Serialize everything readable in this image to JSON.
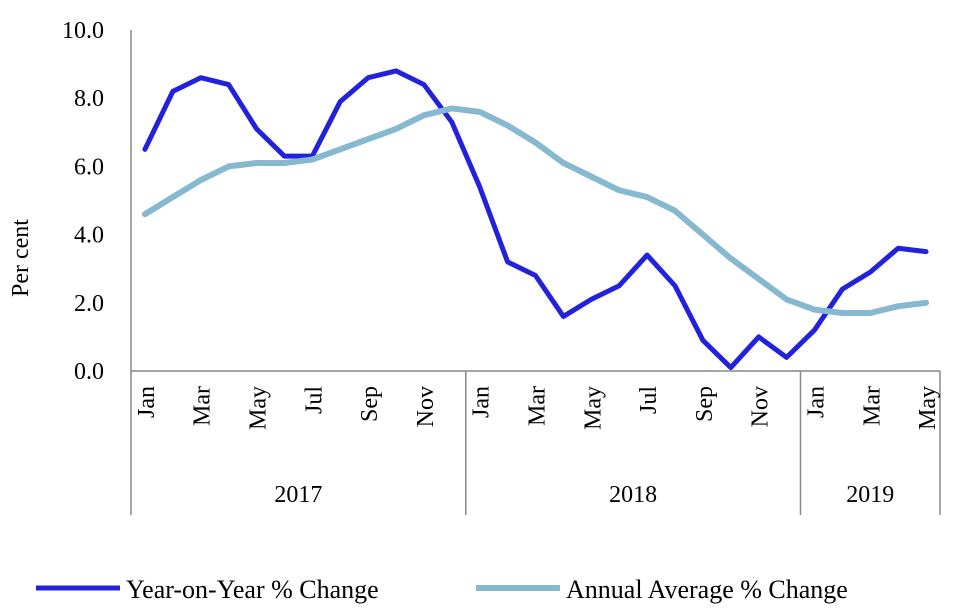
{
  "chart_data": {
    "type": "line",
    "ylabel": "Per cent",
    "ylim": [
      0,
      10
    ],
    "y_ticks": [
      "0.0",
      "2.0",
      "4.0",
      "6.0",
      "8.0",
      "10.0"
    ],
    "y_tick_values": [
      0,
      2,
      4,
      6,
      8,
      10
    ],
    "categories": [
      "Jan",
      "Feb",
      "Mar",
      "Apr",
      "May",
      "Jun",
      "Jul",
      "Aug",
      "Sep",
      "Oct",
      "Nov",
      "Dec",
      "Jan",
      "Feb",
      "Mar",
      "Apr",
      "May",
      "Jun",
      "Jul",
      "Aug",
      "Sep",
      "Oct",
      "Nov",
      "Dec",
      "Jan",
      "Feb",
      "Mar",
      "Apr",
      "May"
    ],
    "shown_month_labels": [
      "Jan",
      "",
      "Mar",
      "",
      "May",
      "",
      "Jul",
      "",
      "Sep",
      "",
      "Nov",
      "",
      "Jan",
      "",
      "Mar",
      "",
      "May",
      "",
      "Jul",
      "",
      "Sep",
      "",
      "Nov",
      "",
      "Jan",
      "",
      "Mar",
      "",
      "May"
    ],
    "year_groups": [
      {
        "label": "2017",
        "count": 12
      },
      {
        "label": "2018",
        "count": 12
      },
      {
        "label": "2019",
        "count": 5
      }
    ],
    "series": [
      {
        "name": "Year-on-Year % Change",
        "color": "#2222dd",
        "values": [
          6.5,
          8.2,
          8.6,
          8.4,
          7.1,
          6.3,
          6.3,
          7.9,
          8.6,
          8.8,
          8.4,
          7.3,
          5.4,
          3.2,
          2.8,
          1.6,
          2.1,
          2.5,
          3.4,
          2.5,
          0.9,
          0.1,
          1.0,
          0.4,
          1.2,
          2.4,
          2.9,
          3.6,
          3.5
        ]
      },
      {
        "name": "Annual Average % Change",
        "color": "#86b8d0",
        "values": [
          4.6,
          5.1,
          5.6,
          6.0,
          6.1,
          6.1,
          6.2,
          6.5,
          6.8,
          7.1,
          7.5,
          7.7,
          7.6,
          7.2,
          6.7,
          6.1,
          5.7,
          5.3,
          5.1,
          4.7,
          4.0,
          3.3,
          2.7,
          2.1,
          1.8,
          1.7,
          1.7,
          1.9,
          2.0
        ]
      }
    ],
    "legend_position": "bottom"
  }
}
